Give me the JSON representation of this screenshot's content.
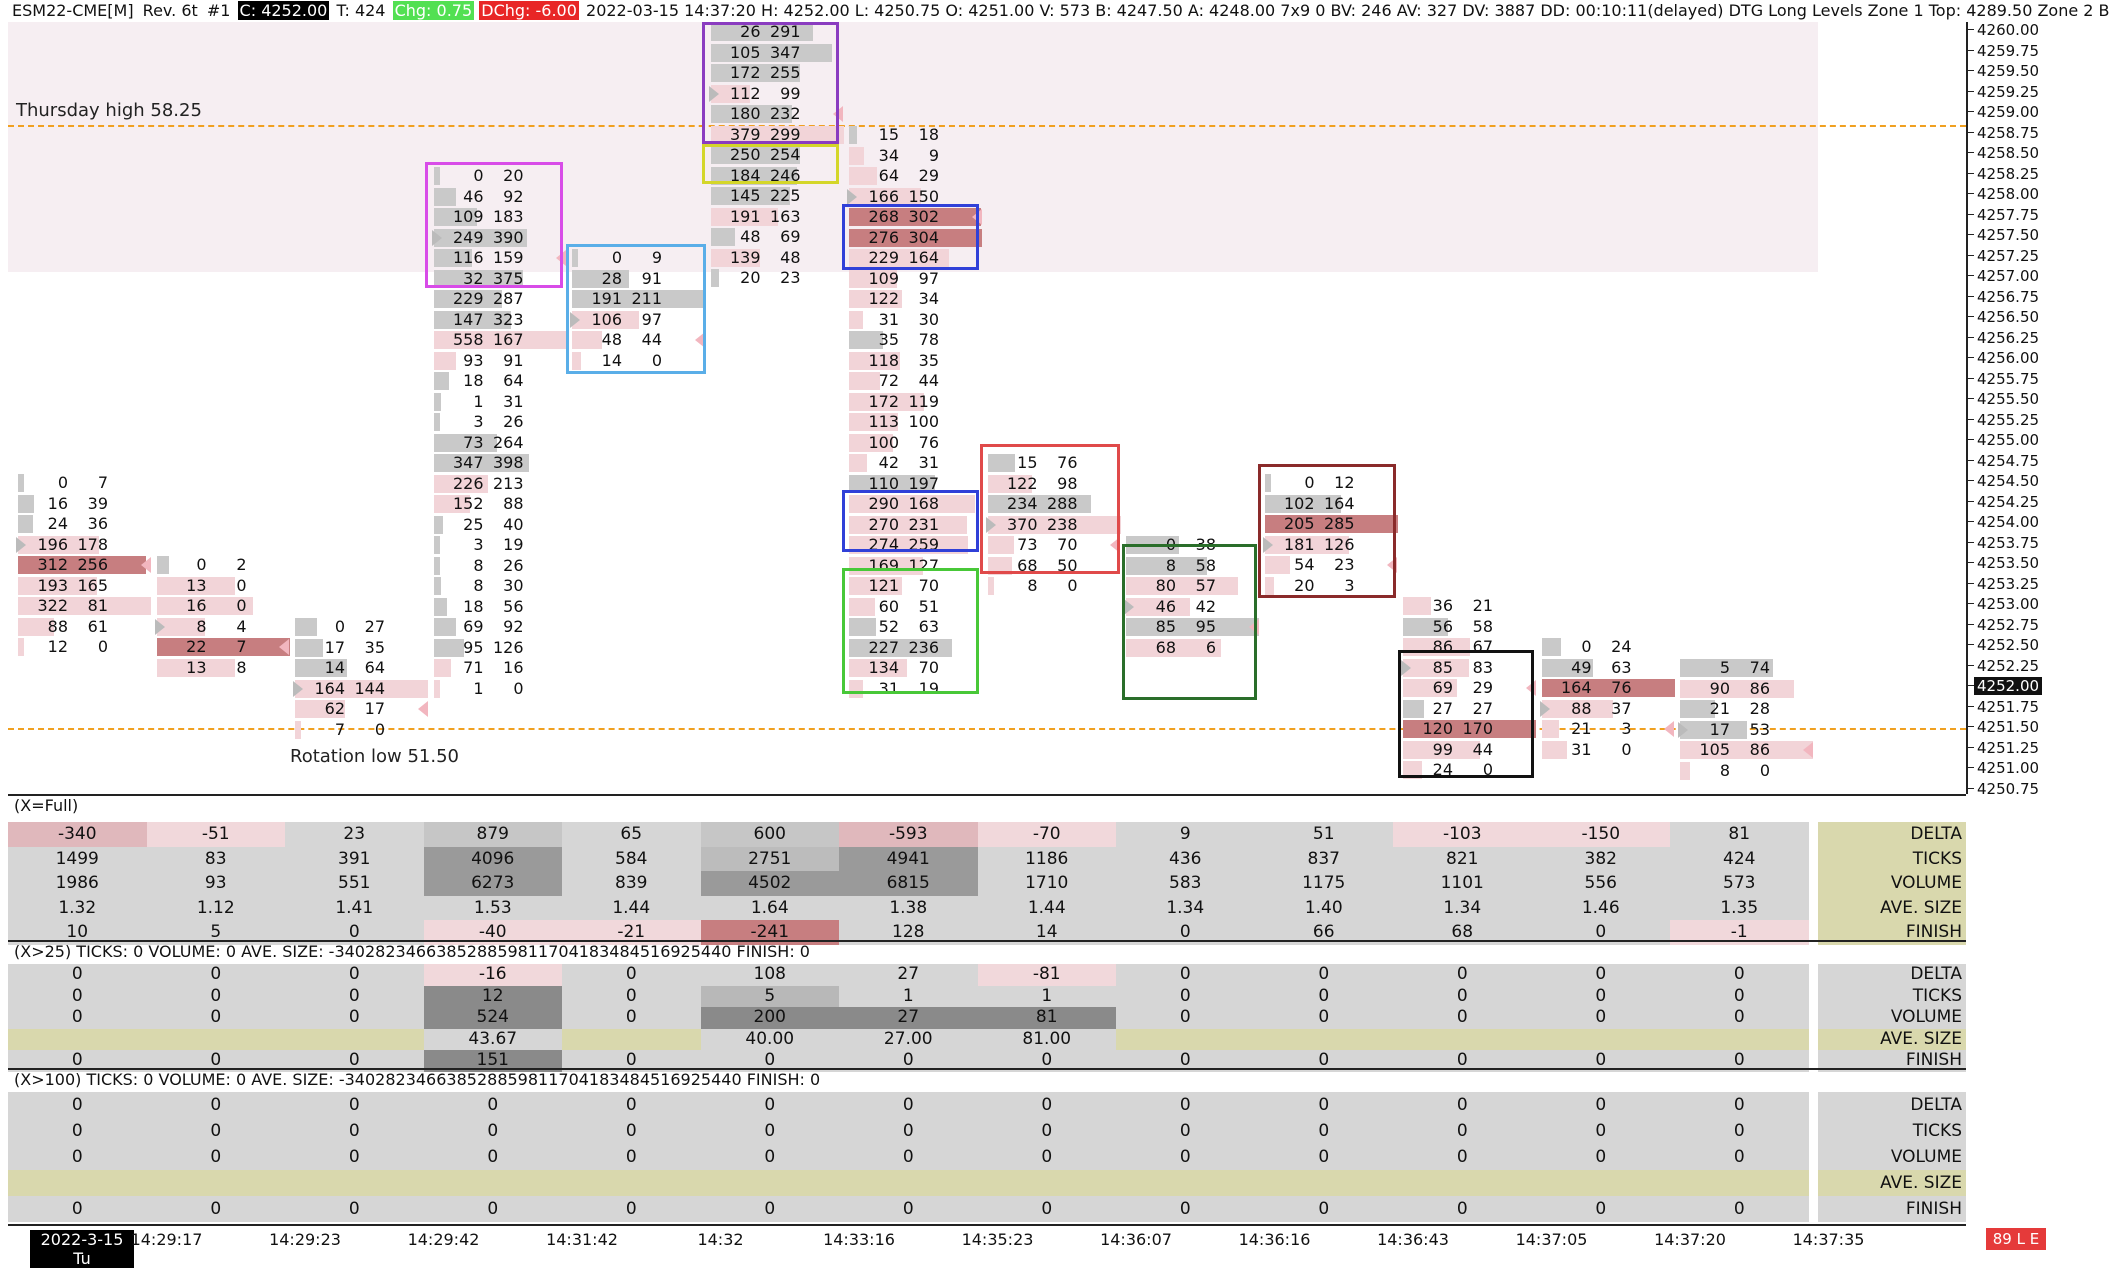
{
  "header": {
    "symbol": "ESM22-CME[M]",
    "rev": "Rev. 6t",
    "instance": "#1",
    "close": "C: 4252.00",
    "trades": "T: 424",
    "chg": "Chg: 0.75",
    "dchg": "DChg: -6.00",
    "rest": "2022-03-15 14:37:20 H: 4252.00 L: 4250.75 O: 4251.00 V: 573 B: 4247.50 A: 4248.00 7x9 0 BV: 246 AV: 327 DV: 3887 DD: 00:10:11(delayed) DTG Long Levels  Zone 1 Top: 4289.50  Zone 2 B"
  },
  "annotations": {
    "thursday_high": "Thursday high 58.25",
    "rotation_low": "Rotation low 51.50"
  },
  "price_axis": {
    "current": "4252.00",
    "ticks": [
      "4260.00",
      "4259.75",
      "4259.50",
      "4259.25",
      "4259.00",
      "4258.75",
      "4258.50",
      "4258.25",
      "4258.00",
      "4257.75",
      "4257.50",
      "4257.25",
      "4257.00",
      "4256.75",
      "4256.50",
      "4256.25",
      "4256.00",
      "4255.75",
      "4255.50",
      "4255.25",
      "4255.00",
      "4254.75",
      "4254.50",
      "4254.25",
      "4254.00",
      "4253.75",
      "4253.50",
      "4253.25",
      "4253.00",
      "4252.75",
      "4252.50",
      "4252.25",
      "4252.00",
      "4251.75",
      "4251.50",
      "4251.25",
      "4251.00",
      "4250.75"
    ]
  },
  "colors": {
    "bid_bar": "#f2d4d8",
    "ask_bar": "#c9c9c9",
    "strong": "#c77e80",
    "zone": "#f6eef2",
    "level_line": "#f0a020"
  },
  "bars": [
    {
      "top": "4254.50",
      "rows": [
        [
          "0",
          "7"
        ],
        [
          "16",
          "39"
        ],
        [
          "24",
          "36"
        ],
        [
          "196",
          "178"
        ],
        [
          "312",
          "256"
        ],
        [
          "193",
          "165"
        ],
        [
          "322",
          "81"
        ],
        [
          "88",
          "61"
        ],
        [
          "12",
          "0"
        ]
      ],
      "strong": [
        4
      ]
    },
    {
      "top": "4253.50",
      "rows": [
        [
          "0",
          "2"
        ],
        [
          "13",
          "0"
        ],
        [
          "16",
          "0"
        ],
        [
          "8",
          "4"
        ],
        [
          "22",
          "7"
        ],
        [
          "13",
          "8"
        ]
      ],
      "strong": [
        4
      ]
    },
    {
      "top": "4252.75",
      "rows": [
        [
          "0",
          "27"
        ],
        [
          "17",
          "35"
        ],
        [
          "14",
          "64"
        ],
        [
          "164",
          "144"
        ],
        [
          "62",
          "17"
        ],
        [
          "7",
          "0"
        ]
      ],
      "strong": []
    },
    {
      "top": "4258.25",
      "rows": [
        [
          "0",
          "20"
        ],
        [
          "46",
          "92"
        ],
        [
          "109",
          "183"
        ],
        [
          "249",
          "390"
        ],
        [
          "116",
          "159"
        ],
        [
          "32",
          "375"
        ],
        [
          "229",
          "287"
        ],
        [
          "147",
          "323"
        ],
        [
          "558",
          "167"
        ],
        [
          "93",
          "91"
        ],
        [
          "18",
          "64"
        ],
        [
          "1",
          "31"
        ],
        [
          "3",
          "26"
        ],
        [
          "73",
          "264"
        ],
        [
          "347",
          "398"
        ],
        [
          "226",
          "213"
        ],
        [
          "152",
          "88"
        ],
        [
          "25",
          "40"
        ],
        [
          "3",
          "19"
        ],
        [
          "8",
          "26"
        ],
        [
          "8",
          "30"
        ],
        [
          "18",
          "56"
        ],
        [
          "69",
          "92"
        ],
        [
          "95",
          "126"
        ],
        [
          "71",
          "16"
        ],
        [
          "1",
          "0"
        ]
      ],
      "strong": []
    },
    {
      "top": "4257.25",
      "rows": [
        [
          "0",
          "9"
        ],
        [
          "28",
          "91"
        ],
        [
          "191",
          "211"
        ],
        [
          "106",
          "97"
        ],
        [
          "48",
          "44"
        ],
        [
          "14",
          "0"
        ]
      ],
      "strong": []
    },
    {
      "top": "4260.00",
      "rows": [
        [
          "26",
          "291"
        ],
        [
          "105",
          "347"
        ],
        [
          "172",
          "255"
        ],
        [
          "112",
          "99"
        ],
        [
          "180",
          "232"
        ],
        [
          "379",
          "299"
        ],
        [
          "250",
          "254"
        ],
        [
          "184",
          "246"
        ],
        [
          "145",
          "225"
        ],
        [
          "191",
          "163"
        ],
        [
          "48",
          "69"
        ],
        [
          "139",
          "48"
        ],
        [
          "20",
          "23"
        ]
      ],
      "strong": []
    },
    {
      "top": "4258.75",
      "rows": [
        [
          "15",
          "18"
        ],
        [
          "34",
          "9"
        ],
        [
          "64",
          "29"
        ],
        [
          "166",
          "150"
        ],
        [
          "268",
          "302"
        ],
        [
          "276",
          "304"
        ],
        [
          "229",
          "164"
        ],
        [
          "109",
          "97"
        ],
        [
          "122",
          "34"
        ],
        [
          "31",
          "30"
        ],
        [
          "35",
          "78"
        ],
        [
          "118",
          "35"
        ],
        [
          "72",
          "44"
        ],
        [
          "172",
          "119"
        ],
        [
          "113",
          "100"
        ],
        [
          "100",
          "76"
        ],
        [
          "42",
          "31"
        ],
        [
          "110",
          "197"
        ],
        [
          "290",
          "168"
        ],
        [
          "270",
          "231"
        ],
        [
          "274",
          "259"
        ],
        [
          "169",
          "127"
        ],
        [
          "121",
          "70"
        ],
        [
          "60",
          "51"
        ],
        [
          "52",
          "63"
        ],
        [
          "227",
          "236"
        ],
        [
          "134",
          "70"
        ],
        [
          "31",
          "19"
        ]
      ],
      "strong": [
        4,
        5
      ]
    },
    {
      "top": "4254.75",
      "rows": [
        [
          "15",
          "76"
        ],
        [
          "122",
          "98"
        ],
        [
          "234",
          "288"
        ],
        [
          "370",
          "238"
        ],
        [
          "73",
          "70"
        ],
        [
          "68",
          "50"
        ],
        [
          "8",
          "0"
        ]
      ],
      "strong": []
    },
    {
      "top": "4253.75",
      "rows": [
        [
          "0",
          "38"
        ],
        [
          "8",
          "58"
        ],
        [
          "80",
          "57"
        ],
        [
          "46",
          "42"
        ],
        [
          "85",
          "95"
        ],
        [
          "68",
          "6"
        ]
      ],
      "strong": []
    },
    {
      "top": "4254.50",
      "rows": [
        [
          "0",
          "12"
        ],
        [
          "102",
          "164"
        ],
        [
          "205",
          "285"
        ],
        [
          "181",
          "126"
        ],
        [
          "54",
          "23"
        ],
        [
          "20",
          "3"
        ]
      ],
      "strong": [
        2
      ]
    },
    {
      "top": "4253.00",
      "rows": [
        [
          "36",
          "21"
        ],
        [
          "56",
          "58"
        ],
        [
          "86",
          "67"
        ],
        [
          "85",
          "83"
        ],
        [
          "69",
          "29"
        ],
        [
          "27",
          "27"
        ],
        [
          "120",
          "170"
        ],
        [
          "99",
          "44"
        ],
        [
          "24",
          "0"
        ]
      ],
      "strong": [
        6
      ]
    },
    {
      "top": "4252.50",
      "rows": [
        [
          "0",
          "24"
        ],
        [
          "49",
          "63"
        ],
        [
          "164",
          "76"
        ],
        [
          "88",
          "37"
        ],
        [
          "21",
          "3"
        ],
        [
          "31",
          "0"
        ]
      ],
      "strong": [
        2
      ]
    },
    {
      "top": "4252.25",
      "rows": [
        [
          "5",
          "74"
        ],
        [
          "90",
          "86"
        ],
        [
          "21",
          "28"
        ],
        [
          "17",
          "53"
        ],
        [
          "105",
          "86"
        ],
        [
          "8",
          "0"
        ]
      ],
      "strong": []
    }
  ],
  "summary": {
    "full": {
      "title": "(X=Full)",
      "labels": [
        "DELTA",
        "TICKS",
        "VOLUME",
        "AVE. SIZE",
        "FINISH"
      ],
      "rows": [
        [
          "-340",
          "-51",
          "23",
          "879",
          "65",
          "600",
          "-593",
          "-70",
          "9",
          "51",
          "-103",
          "-150",
          "81"
        ],
        [
          "1499",
          "83",
          "391",
          "4096",
          "584",
          "2751",
          "4941",
          "1186",
          "436",
          "837",
          "821",
          "382",
          "424"
        ],
        [
          "1986",
          "93",
          "551",
          "6273",
          "839",
          "4502",
          "6815",
          "1710",
          "583",
          "1175",
          "1101",
          "556",
          "573"
        ],
        [
          "1.32",
          "1.12",
          "1.41",
          "1.53",
          "1.44",
          "1.64",
          "1.38",
          "1.44",
          "1.34",
          "1.40",
          "1.34",
          "1.46",
          "1.35"
        ],
        [
          "10",
          "5",
          "0",
          "-40",
          "-21",
          "-241",
          "128",
          "14",
          "0",
          "66",
          "68",
          "0",
          "-1"
        ]
      ]
    },
    "x25": {
      "title": "(X>25)  TICKS: 0  VOLUME: 0  AVE. SIZE: -340282346638528859811704183484516925440  FINISH: 0",
      "labels": [
        "DELTA",
        "TICKS",
        "VOLUME",
        "AVE. SIZE",
        "FINISH"
      ],
      "rows": [
        [
          "0",
          "0",
          "0",
          "-16",
          "0",
          "108",
          "27",
          "-81",
          "0",
          "0",
          "0",
          "0",
          "0"
        ],
        [
          "0",
          "0",
          "0",
          "12",
          "0",
          "5",
          "1",
          "1",
          "0",
          "0",
          "0",
          "0",
          "0"
        ],
        [
          "0",
          "0",
          "0",
          "524",
          "0",
          "200",
          "27",
          "81",
          "0",
          "0",
          "0",
          "0",
          "0"
        ],
        [
          "",
          "",
          "",
          "43.67",
          "",
          "40.00",
          "27.00",
          "81.00",
          "",
          "",
          "",
          "",
          ""
        ],
        [
          "0",
          "0",
          "0",
          "151",
          "0",
          "0",
          "0",
          "0",
          "0",
          "0",
          "0",
          "0",
          "0"
        ]
      ]
    },
    "x100": {
      "title": "(X>100)  TICKS: 0  VOLUME: 0  AVE. SIZE: -340282346638528859811704183484516925440  FINISH: 0",
      "labels": [
        "DELTA",
        "TICKS",
        "VOLUME",
        "AVE. SIZE",
        "FINISH"
      ],
      "rows": [
        [
          "0",
          "0",
          "0",
          "0",
          "0",
          "0",
          "0",
          "0",
          "0",
          "0",
          "0",
          "0",
          "0"
        ],
        [
          "0",
          "0",
          "0",
          "0",
          "0",
          "0",
          "0",
          "0",
          "0",
          "0",
          "0",
          "0",
          "0"
        ],
        [
          "0",
          "0",
          "0",
          "0",
          "0",
          "0",
          "0",
          "0",
          "0",
          "0",
          "0",
          "0",
          "0"
        ],
        [
          "",
          "",
          "",
          "",
          "",
          "",
          "",
          "",
          "",
          "",
          "",
          "",
          ""
        ],
        [
          "0",
          "0",
          "0",
          "0",
          "0",
          "0",
          "0",
          "0",
          "0",
          "0",
          "0",
          "0",
          "0"
        ]
      ]
    }
  },
  "time_axis": {
    "date": "2022-3-15 Tu",
    "times": [
      "14:29:17",
      "14:29:23",
      "14:29:42",
      "14:31:42",
      "14:32",
      "14:33:16",
      "14:35:23",
      "14:36:07",
      "14:36:16",
      "14:36:43",
      "14:37:05",
      "14:37:20",
      "14:37:35"
    ],
    "badge": "89 L E"
  }
}
